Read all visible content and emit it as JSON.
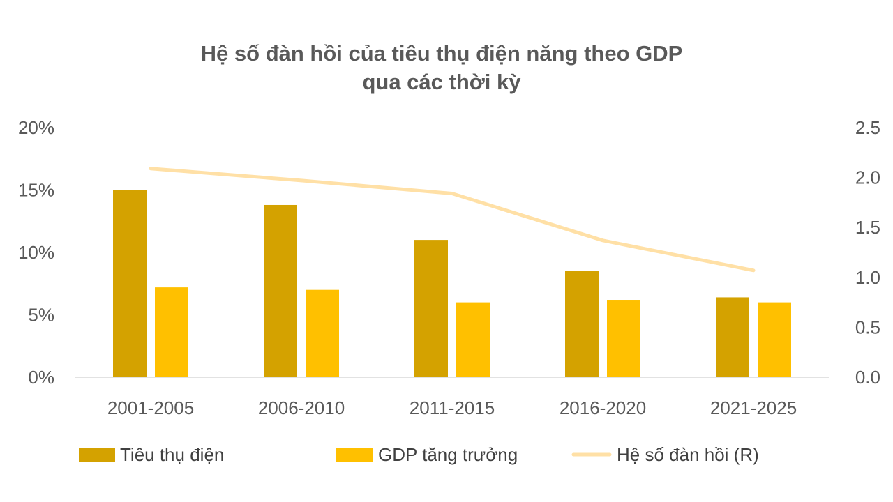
{
  "chart_data": {
    "type": "bar",
    "title": [
      "Hệ số đàn hồi của tiêu thụ điện năng theo GDP",
      "qua các thời kỳ"
    ],
    "categories": [
      "2001-2005",
      "2006-2010",
      "2011-2015",
      "2016-2020",
      "2021-2025"
    ],
    "series": [
      {
        "name": "Tiêu thụ điện",
        "type": "bar",
        "axis": "left",
        "color": "#D4A200",
        "values": [
          15.0,
          13.8,
          11.0,
          8.5,
          6.4
        ]
      },
      {
        "name": "GDP tăng trưởng",
        "type": "bar",
        "axis": "left",
        "color": "#FFC000",
        "values": [
          7.2,
          7.0,
          6.0,
          6.2,
          6.0
        ]
      },
      {
        "name": "Hệ số đàn hồi (R)",
        "type": "line",
        "axis": "right",
        "color": "#FFE0A6",
        "values": [
          2.09,
          1.97,
          1.84,
          1.37,
          1.07
        ]
      }
    ],
    "y_left": {
      "ylim": [
        0,
        20
      ],
      "ticks": [
        "0%",
        "5%",
        "10%",
        "15%",
        "20%"
      ],
      "tick_values": [
        0,
        5,
        10,
        15,
        20
      ]
    },
    "y_right": {
      "ylim": [
        0,
        2.5
      ],
      "ticks": [
        "0.0",
        "0.5",
        "1.0",
        "1.5",
        "2.0",
        "2.5"
      ],
      "tick_values": [
        0,
        0.5,
        1.0,
        1.5,
        2.0,
        2.5
      ]
    },
    "grid": false,
    "legend": "bottom"
  }
}
